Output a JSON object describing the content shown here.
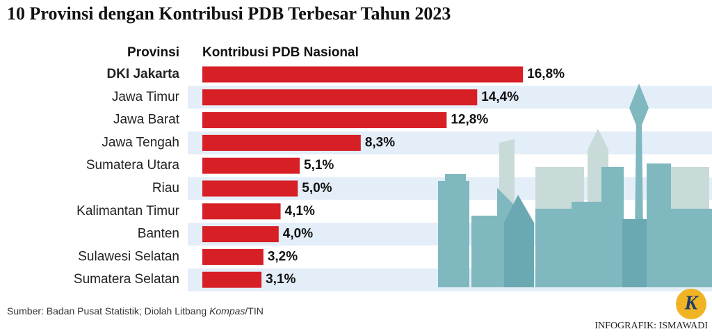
{
  "chart_data": {
    "type": "bar",
    "orientation": "horizontal",
    "title": "10 Provinsi dengan Kontribusi PDB Terbesar Tahun 2023",
    "category_header": "Provinsi",
    "value_header": "Kontribusi PDB Nasional",
    "categories": [
      "DKI Jakarta",
      "Jawa Timur",
      "Jawa Barat",
      "Jawa Tengah",
      "Sumatera Utara",
      "Riau",
      "Kalimantan Timur",
      "Banten",
      "Sulawesi Selatan",
      "Sumatera Selatan"
    ],
    "values": [
      16.8,
      14.4,
      12.8,
      8.3,
      5.1,
      5.0,
      4.1,
      4.0,
      3.2,
      3.1
    ],
    "value_labels": [
      "16,8%",
      "14,4%",
      "12,8%",
      "8,3%",
      "5,1%",
      "5,0%",
      "4,1%",
      "4,0%",
      "3,2%",
      "3,1%"
    ],
    "color": "#d71f26",
    "source": [
      "Sumber: Badan Pusat Statistik; Diolah Litbang ",
      "Kompas",
      "/TIN"
    ],
    "credit": "INFOGRAFIK: ISMAWADI",
    "logo": "K"
  }
}
